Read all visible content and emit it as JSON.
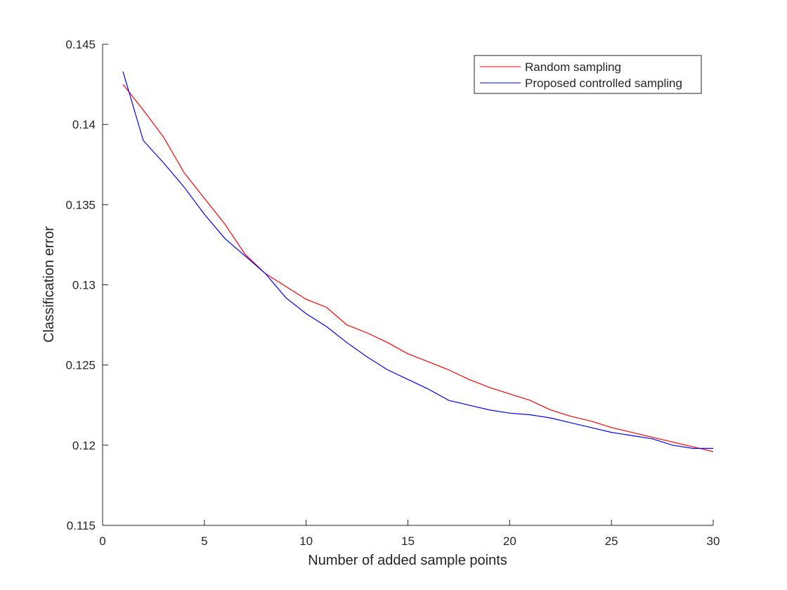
{
  "chart_data": {
    "type": "line",
    "title": "",
    "xlabel": "Number of added sample points",
    "ylabel": "Classification error",
    "xlim": [
      0,
      30
    ],
    "ylim": [
      0.115,
      0.145
    ],
    "xticks": [
      0,
      5,
      10,
      15,
      20,
      25,
      30
    ],
    "xtick_labels": [
      "0",
      "5",
      "10",
      "15",
      "20",
      "25",
      "30"
    ],
    "yticks": [
      0.115,
      0.12,
      0.125,
      0.13,
      0.135,
      0.14,
      0.145
    ],
    "ytick_labels": [
      "0.115",
      "0.12",
      "0.125",
      "0.13",
      "0.135",
      "0.14",
      "0.145"
    ],
    "grid": false,
    "legend_position": "top-right",
    "x": [
      1,
      2,
      3,
      4,
      5,
      6,
      7,
      8,
      9,
      10,
      11,
      12,
      13,
      14,
      15,
      16,
      17,
      18,
      19,
      20,
      21,
      22,
      23,
      24,
      25,
      26,
      27,
      28,
      29,
      30
    ],
    "series": [
      {
        "name": "Random sampling",
        "color": "#ff0000",
        "values": [
          0.1425,
          0.1409,
          0.1392,
          0.137,
          0.1354,
          0.1338,
          0.1319,
          0.1307,
          0.1299,
          0.1291,
          0.1286,
          0.1275,
          0.127,
          0.1264,
          0.1257,
          0.1252,
          0.1247,
          0.1241,
          0.1236,
          0.1232,
          0.1228,
          0.1222,
          0.1218,
          0.1215,
          0.1211,
          0.1208,
          0.1205,
          0.1202,
          0.1199,
          0.1196
        ]
      },
      {
        "name": "Proposed controlled sampling",
        "color": "#0000ff",
        "values": [
          0.1433,
          0.139,
          0.1376,
          0.1361,
          0.1344,
          0.1329,
          0.1318,
          0.1307,
          0.1292,
          0.1282,
          0.1274,
          0.1264,
          0.1255,
          0.1247,
          0.1241,
          0.1235,
          0.1228,
          0.1225,
          0.1222,
          0.122,
          0.1219,
          0.1217,
          0.1214,
          0.1211,
          0.1208,
          0.1206,
          0.1204,
          0.12,
          0.1198,
          0.1198
        ]
      }
    ]
  }
}
